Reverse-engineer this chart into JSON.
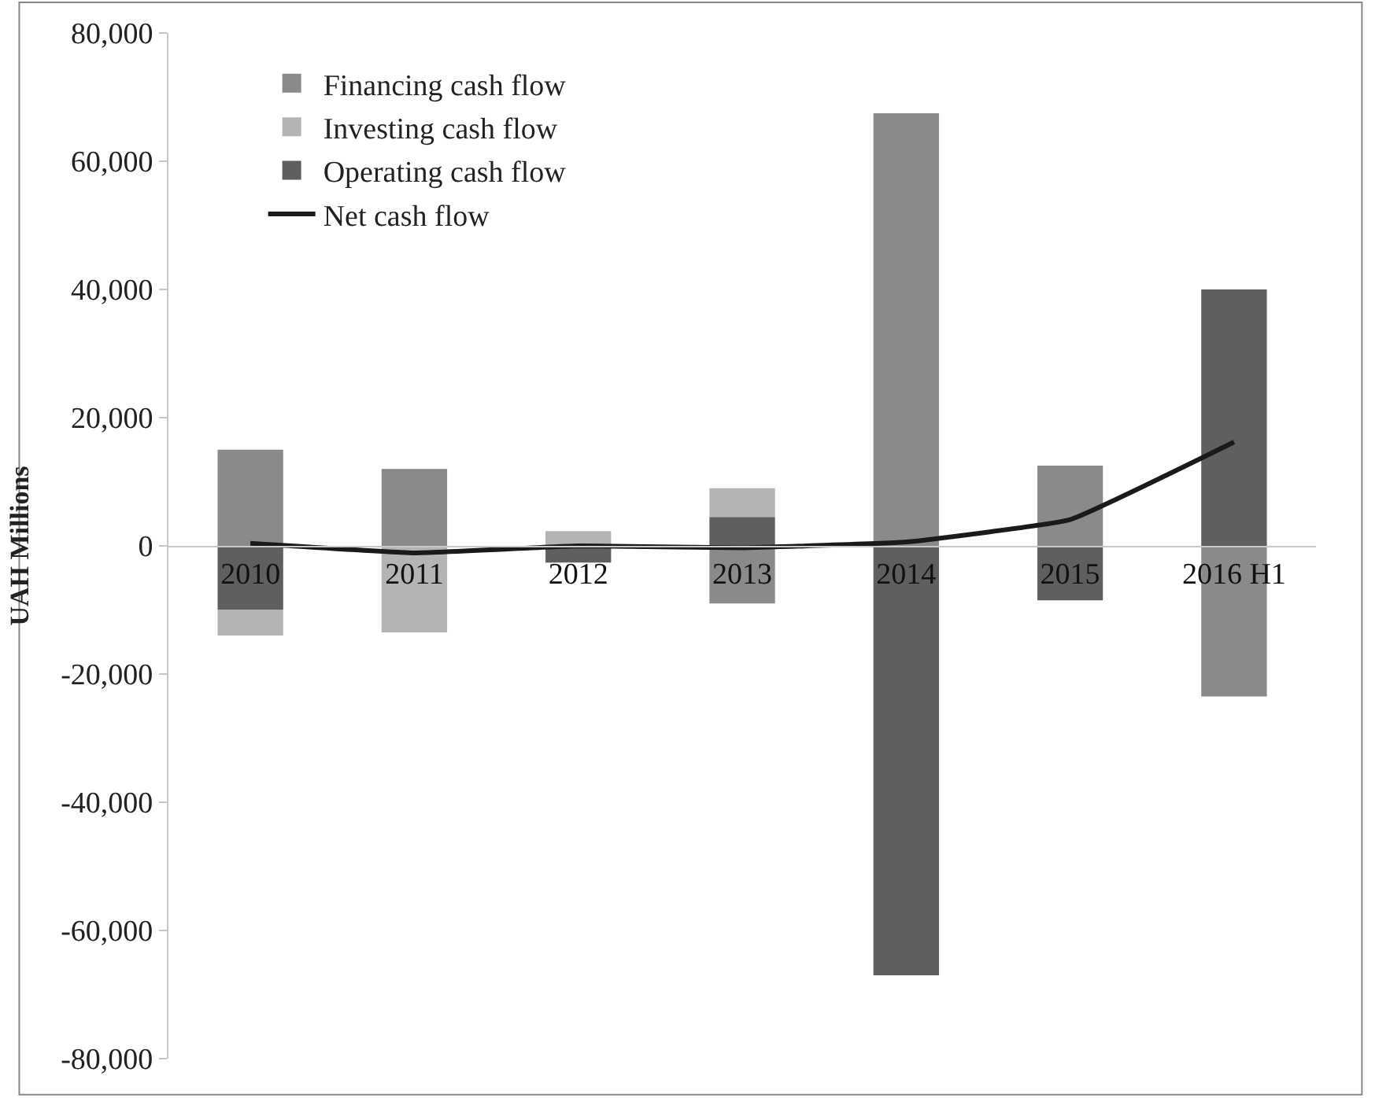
{
  "chart_data": {
    "type": "bar",
    "stacked": true,
    "ylabel": "UAH Millions",
    "categories": [
      "2010",
      "2011",
      "2012",
      "2013",
      "2014",
      "2015",
      "2016 H1"
    ],
    "series": [
      {
        "name": "Operating cash flow",
        "color": "#5f5f5f",
        "values": [
          -10000,
          0,
          -2600,
          4500,
          -67000,
          -8500,
          40000
        ]
      },
      {
        "name": "Investing cash flow",
        "color": "#b4b4b4",
        "values": [
          -4000,
          -13500,
          2300,
          4500,
          0,
          0,
          0
        ]
      },
      {
        "name": "Financing cash flow",
        "color": "#8a8a8a",
        "values": [
          15000,
          12000,
          0,
          -9000,
          67500,
          12500,
          -23500
        ]
      },
      {
        "name": "Net cash flow",
        "type": "line",
        "color": "#1a1a1a",
        "values": [
          400,
          -1100,
          0,
          -300,
          600,
          4100,
          16200
        ]
      }
    ],
    "ylim": [
      -80000,
      80000
    ],
    "yticks": [
      {
        "value": -80000,
        "label": "-80,000"
      },
      {
        "value": -60000,
        "label": "-60,000"
      },
      {
        "value": -40000,
        "label": "-40,000"
      },
      {
        "value": -20000,
        "label": "-20,000"
      },
      0,
      {
        "value": 20000,
        "label": "20,000"
      },
      {
        "value": 40000,
        "label": "40,000"
      },
      {
        "value": 60000,
        "label": "60,000"
      },
      {
        "value": 80000,
        "label": "80,000"
      }
    ],
    "legend": "top left",
    "marker": "none",
    "line_style": "solid"
  }
}
